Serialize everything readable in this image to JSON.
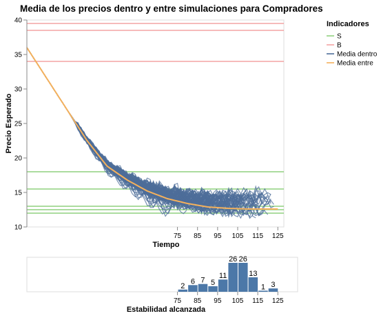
{
  "chart_data": [
    {
      "type": "line",
      "title": "Media de los precios dentro y entre simulaciones para Compradores",
      "xlabel": "Tiempo",
      "ylabel": "Precio Esperado",
      "xlim": [
        0,
        128
      ],
      "ylim": [
        10,
        40
      ],
      "x_ticks": [
        75,
        85,
        95,
        105,
        115,
        125
      ],
      "y_ticks": [
        10,
        15,
        20,
        25,
        30,
        35,
        40
      ],
      "legend": {
        "title": "Indicadores",
        "position": "right",
        "entries": [
          {
            "label": "S",
            "color": "#8fd17f"
          },
          {
            "label": "B",
            "color": "#f4a3a3"
          },
          {
            "label": "Media dentro",
            "color": "#4e6e9a"
          },
          {
            "label": "Media entre",
            "color": "#f5b15c"
          }
        ]
      },
      "reference_lines": {
        "S": [
          18.0,
          15.5,
          13.0,
          12.5,
          12.0
        ],
        "B": [
          39.5,
          38.5,
          34.0
        ]
      },
      "series": [
        {
          "name": "Media entre",
          "x": [
            0,
            10,
            20,
            30,
            40,
            50,
            60,
            70,
            80,
            90,
            100,
            110,
            120,
            125
          ],
          "y": [
            36.0,
            31.5,
            27.0,
            22.5,
            18.8,
            16.8,
            15.2,
            14.1,
            13.4,
            12.9,
            12.7,
            12.6,
            12.6,
            12.6
          ]
        }
      ],
      "within_simulations": {
        "count": 100,
        "start_value": 36.0,
        "end_range": [
          12.0,
          14.8
        ],
        "end_time_range": [
          71,
          125
        ]
      }
    },
    {
      "type": "bar",
      "xlabel": "Estabilidad alcanzada",
      "x_ticks": [
        75,
        85,
        95,
        105,
        115,
        125
      ],
      "bins": [
        80,
        85,
        90,
        95,
        100,
        105,
        110,
        115,
        120,
        125
      ],
      "values": [
        2,
        6,
        7,
        5,
        11,
        26,
        26,
        13,
        1,
        3
      ],
      "color": "#4c78a8"
    }
  ]
}
